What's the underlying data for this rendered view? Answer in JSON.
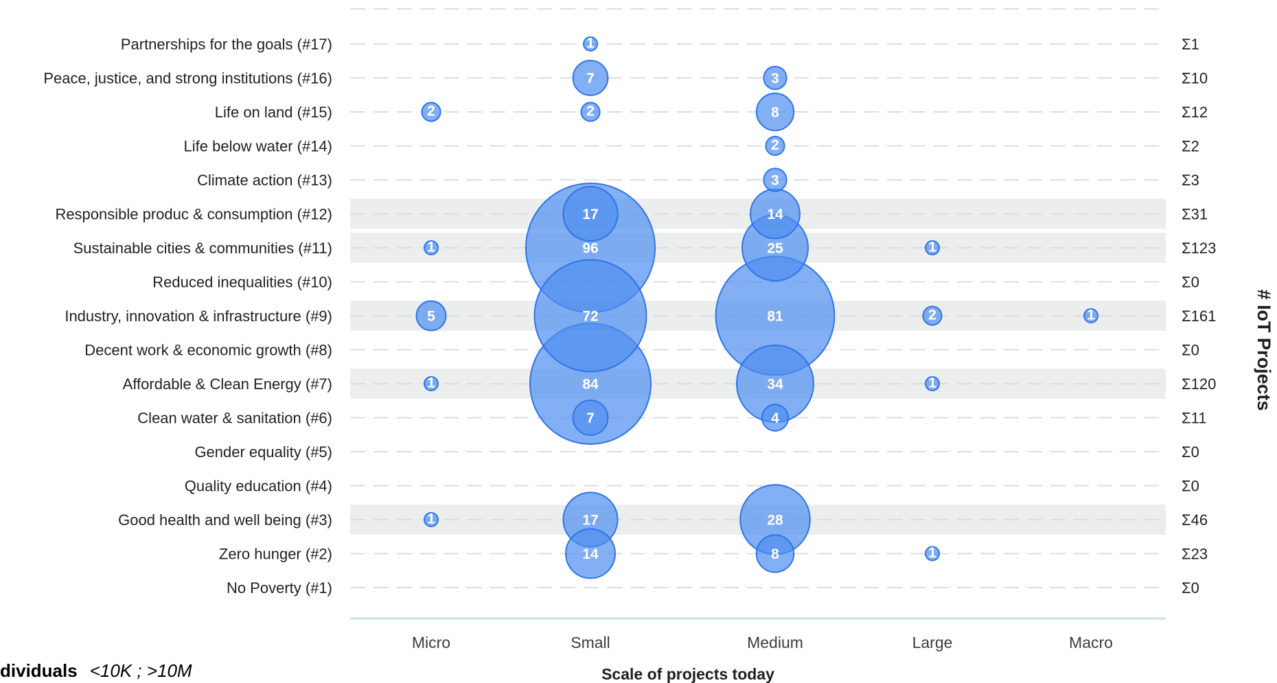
{
  "chart_data": {
    "type": "bubble",
    "xlabel": "Scale of projects today",
    "ylabel_right": "# IoT Projects",
    "x_categories": [
      "Micro",
      "Small",
      "Medium",
      "Large",
      "Macro"
    ],
    "rows": [
      {
        "label": "Partnerships for the goals (#17)",
        "sum": "Σ1",
        "highlight": false,
        "values": [
          0,
          1,
          0,
          0,
          0
        ]
      },
      {
        "label": "Peace, justice, and strong institutions (#16)",
        "sum": "Σ10",
        "highlight": false,
        "values": [
          0,
          7,
          3,
          0,
          0
        ]
      },
      {
        "label": "Life on land (#15)",
        "sum": "Σ12",
        "highlight": false,
        "values": [
          2,
          2,
          8,
          0,
          0
        ]
      },
      {
        "label": "Life below water (#14)",
        "sum": "Σ2",
        "highlight": false,
        "values": [
          0,
          0,
          2,
          0,
          0
        ]
      },
      {
        "label": "Climate action (#13)",
        "sum": "Σ3",
        "highlight": false,
        "values": [
          0,
          0,
          3,
          0,
          0
        ]
      },
      {
        "label": "Responsible produc & consumption (#12)",
        "sum": "Σ31",
        "highlight": true,
        "values": [
          0,
          17,
          14,
          0,
          0
        ]
      },
      {
        "label": "Sustainable cities & communities (#11)",
        "sum": "Σ123",
        "highlight": true,
        "values": [
          1,
          96,
          25,
          1,
          0
        ]
      },
      {
        "label": "Reduced inequalities (#10)",
        "sum": "Σ0",
        "highlight": false,
        "values": [
          0,
          0,
          0,
          0,
          0
        ]
      },
      {
        "label": "Industry, innovation & infrastructure (#9)",
        "sum": "Σ161",
        "highlight": true,
        "values": [
          5,
          72,
          81,
          2,
          1
        ]
      },
      {
        "label": "Decent work & economic growth (#8)",
        "sum": "Σ0",
        "highlight": false,
        "values": [
          0,
          0,
          0,
          0,
          0
        ]
      },
      {
        "label": "Affordable & Clean Energy (#7)",
        "sum": "Σ120",
        "highlight": true,
        "values": [
          1,
          84,
          34,
          1,
          0
        ]
      },
      {
        "label": "Clean water & sanitation (#6)",
        "sum": "Σ11",
        "highlight": false,
        "values": [
          0,
          7,
          4,
          0,
          0
        ]
      },
      {
        "label": "Gender equality (#5)",
        "sum": "Σ0",
        "highlight": false,
        "values": [
          0,
          0,
          0,
          0,
          0
        ]
      },
      {
        "label": "Quality education (#4)",
        "sum": "Σ0",
        "highlight": false,
        "values": [
          0,
          0,
          0,
          0,
          0
        ]
      },
      {
        "label": "Good health and well being (#3)",
        "sum": "Σ46",
        "highlight": true,
        "values": [
          1,
          17,
          28,
          0,
          0
        ]
      },
      {
        "label": "Zero hunger (#2)",
        "sum": "Σ23",
        "highlight": false,
        "values": [
          0,
          14,
          8,
          1,
          0
        ]
      },
      {
        "label": "No Poverty (#1)",
        "sum": "Σ0",
        "highlight": false,
        "values": [
          0,
          0,
          0,
          0,
          0
        ]
      }
    ],
    "colors": {
      "bubble_fill": "#4f8ef0",
      "bubble_stroke": "#2f74e8",
      "highlight_band": "#eceeee",
      "gridline": "#d9dde3",
      "axis_line": "#c9e0f2"
    },
    "grid": true
  },
  "legend": {
    "bold_text": "dividuals",
    "italic_text": "<10K ; >10M"
  }
}
